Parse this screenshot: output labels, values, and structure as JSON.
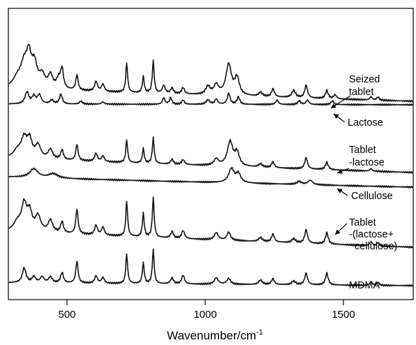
{
  "chart_data": {
    "type": "line",
    "title": "",
    "xlabel": "Wavenumber/cm",
    "xlabel_superscript": "-1",
    "ylabel": "",
    "xlim": [
      200,
      2000
    ],
    "x_ticks": [
      500,
      1000,
      1500
    ],
    "x_tick_labels": [
      "500",
      "1000",
      "1500"
    ],
    "grid": false,
    "legend": "none",
    "stacked_offset": true,
    "series": [
      {
        "name": "Seized tablet",
        "label_lines": [
          "Seized",
          "tablet"
        ],
        "x_range": [
          290,
          1750
        ],
        "baseline_start": 1.6,
        "baseline_end": 0.0,
        "peaks": [
          [
            320,
            1.0,
            18
          ],
          [
            345,
            2.8,
            16
          ],
          [
            362,
            3.3,
            10
          ],
          [
            382,
            2.8,
            12
          ],
          [
            410,
            1.5,
            12
          ],
          [
            440,
            1.6,
            10
          ],
          [
            470,
            1.2,
            10
          ],
          [
            482,
            2.3,
            6
          ],
          [
            536,
            1.9,
            5
          ],
          [
            605,
            1.2,
            6
          ],
          [
            630,
            0.9,
            6
          ],
          [
            716,
            3.6,
            4
          ],
          [
            776,
            2.0,
            4
          ],
          [
            812,
            4.0,
            4
          ],
          [
            850,
            1.0,
            6
          ],
          [
            880,
            0.7,
            6
          ],
          [
            920,
            0.8,
            6
          ],
          [
            1010,
            1.0,
            10
          ],
          [
            1040,
            1.2,
            10
          ],
          [
            1085,
            3.8,
            12
          ],
          [
            1115,
            2.1,
            10
          ],
          [
            1200,
            0.5,
            8
          ],
          [
            1245,
            1.0,
            6
          ],
          [
            1320,
            0.9,
            8
          ],
          [
            1365,
            1.6,
            6
          ],
          [
            1440,
            1.0,
            6
          ],
          [
            1470,
            0.5,
            6
          ],
          [
            1600,
            0.4,
            5
          ],
          [
            1625,
            0.4,
            5
          ]
        ]
      },
      {
        "name": "Lactose",
        "label_lines": [
          "Lactose"
        ],
        "x_range": [
          290,
          1750
        ],
        "baseline_start": 0.1,
        "baseline_end": 0.0,
        "peaks": [
          [
            355,
            1.6,
            8
          ],
          [
            380,
            1.0,
            8
          ],
          [
            400,
            1.2,
            8
          ],
          [
            445,
            0.5,
            8
          ],
          [
            478,
            1.3,
            6
          ],
          [
            550,
            0.4,
            6
          ],
          [
            630,
            0.3,
            6
          ],
          [
            850,
            0.9,
            5
          ],
          [
            875,
            0.9,
            5
          ],
          [
            920,
            0.6,
            5
          ],
          [
            1010,
            0.6,
            8
          ],
          [
            1040,
            0.7,
            6
          ],
          [
            1085,
            1.5,
            6
          ],
          [
            1120,
            1.0,
            6
          ],
          [
            1260,
            0.6,
            6
          ],
          [
            1340,
            0.5,
            6
          ],
          [
            1370,
            0.6,
            6
          ],
          [
            1460,
            0.5,
            6
          ]
        ]
      },
      {
        "name": "Tablet -lactose",
        "label_lines": [
          "Tablet",
          "-lactose"
        ],
        "x_range": [
          290,
          1750
        ],
        "baseline_start": 1.8,
        "baseline_end": 0.0,
        "peaks": [
          [
            320,
            0.8,
            16
          ],
          [
            345,
            2.4,
            14
          ],
          [
            365,
            2.0,
            10
          ],
          [
            395,
            1.6,
            12
          ],
          [
            440,
            1.2,
            10
          ],
          [
            482,
            1.2,
            6
          ],
          [
            536,
            2.0,
            5
          ],
          [
            605,
            1.0,
            6
          ],
          [
            630,
            0.7,
            6
          ],
          [
            716,
            2.8,
            4
          ],
          [
            776,
            1.8,
            4
          ],
          [
            812,
            3.2,
            4
          ],
          [
            880,
            0.6,
            6
          ],
          [
            920,
            0.6,
            6
          ],
          [
            1040,
            0.8,
            10
          ],
          [
            1090,
            3.0,
            12
          ],
          [
            1115,
            1.6,
            10
          ],
          [
            1200,
            0.4,
            8
          ],
          [
            1245,
            0.7,
            6
          ],
          [
            1365,
            1.4,
            6
          ],
          [
            1440,
            0.9,
            6
          ],
          [
            1600,
            0.3,
            5
          ]
        ]
      },
      {
        "name": "Cellulose",
        "label_lines": [
          "Cellulose"
        ],
        "x_range": [
          290,
          1750
        ],
        "baseline_start": 1.4,
        "baseline_end": 0.0,
        "peaks": [
          [
            380,
            1.2,
            18
          ],
          [
            450,
            0.6,
            20
          ],
          [
            1095,
            1.9,
            12
          ],
          [
            1120,
            1.2,
            10
          ],
          [
            1340,
            0.4,
            10
          ],
          [
            1380,
            0.6,
            10
          ]
        ]
      },
      {
        "name": "Tablet -(lactose+ cellulose)",
        "label_lines": [
          "Tablet",
          "-(lactose+",
          "cellulose)"
        ],
        "x_range": [
          290,
          1750
        ],
        "baseline_start": 2.0,
        "baseline_end": 0.0,
        "peaks": [
          [
            320,
            1.0,
            14
          ],
          [
            345,
            3.3,
            12
          ],
          [
            365,
            2.1,
            10
          ],
          [
            395,
            1.9,
            12
          ],
          [
            440,
            1.5,
            10
          ],
          [
            482,
            1.4,
            6
          ],
          [
            536,
            3.1,
            5
          ],
          [
            605,
            1.2,
            6
          ],
          [
            630,
            1.0,
            6
          ],
          [
            716,
            4.3,
            4
          ],
          [
            776,
            2.9,
            4
          ],
          [
            812,
            4.9,
            4
          ],
          [
            880,
            0.8,
            6
          ],
          [
            920,
            1.0,
            6
          ],
          [
            1040,
            0.9,
            8
          ],
          [
            1085,
            1.0,
            8
          ],
          [
            1200,
            0.5,
            8
          ],
          [
            1245,
            1.0,
            6
          ],
          [
            1320,
            0.5,
            8
          ],
          [
            1365,
            1.7,
            6
          ],
          [
            1440,
            1.4,
            6
          ],
          [
            1600,
            0.5,
            5
          ],
          [
            1625,
            0.4,
            5
          ]
        ]
      },
      {
        "name": "MDMA",
        "label_lines": [
          "MDMA"
        ],
        "x_range": [
          290,
          1750
        ],
        "baseline_start": 0.4,
        "baseline_end": 0.0,
        "peaks": [
          [
            345,
            2.0,
            8
          ],
          [
            380,
            0.8,
            8
          ],
          [
            410,
            0.8,
            8
          ],
          [
            440,
            0.8,
            8
          ],
          [
            482,
            1.4,
            6
          ],
          [
            536,
            3.0,
            5
          ],
          [
            605,
            1.0,
            6
          ],
          [
            630,
            0.8,
            6
          ],
          [
            716,
            4.0,
            4
          ],
          [
            776,
            2.8,
            4
          ],
          [
            812,
            4.6,
            4
          ],
          [
            880,
            0.8,
            6
          ],
          [
            920,
            1.2,
            6
          ],
          [
            1040,
            0.9,
            8
          ],
          [
            1085,
            0.8,
            8
          ],
          [
            1200,
            0.6,
            8
          ],
          [
            1245,
            0.8,
            6
          ],
          [
            1320,
            0.5,
            8
          ],
          [
            1365,
            1.6,
            6
          ],
          [
            1440,
            1.6,
            6
          ],
          [
            1600,
            0.5,
            5
          ],
          [
            1625,
            0.4,
            5
          ]
        ]
      }
    ]
  }
}
